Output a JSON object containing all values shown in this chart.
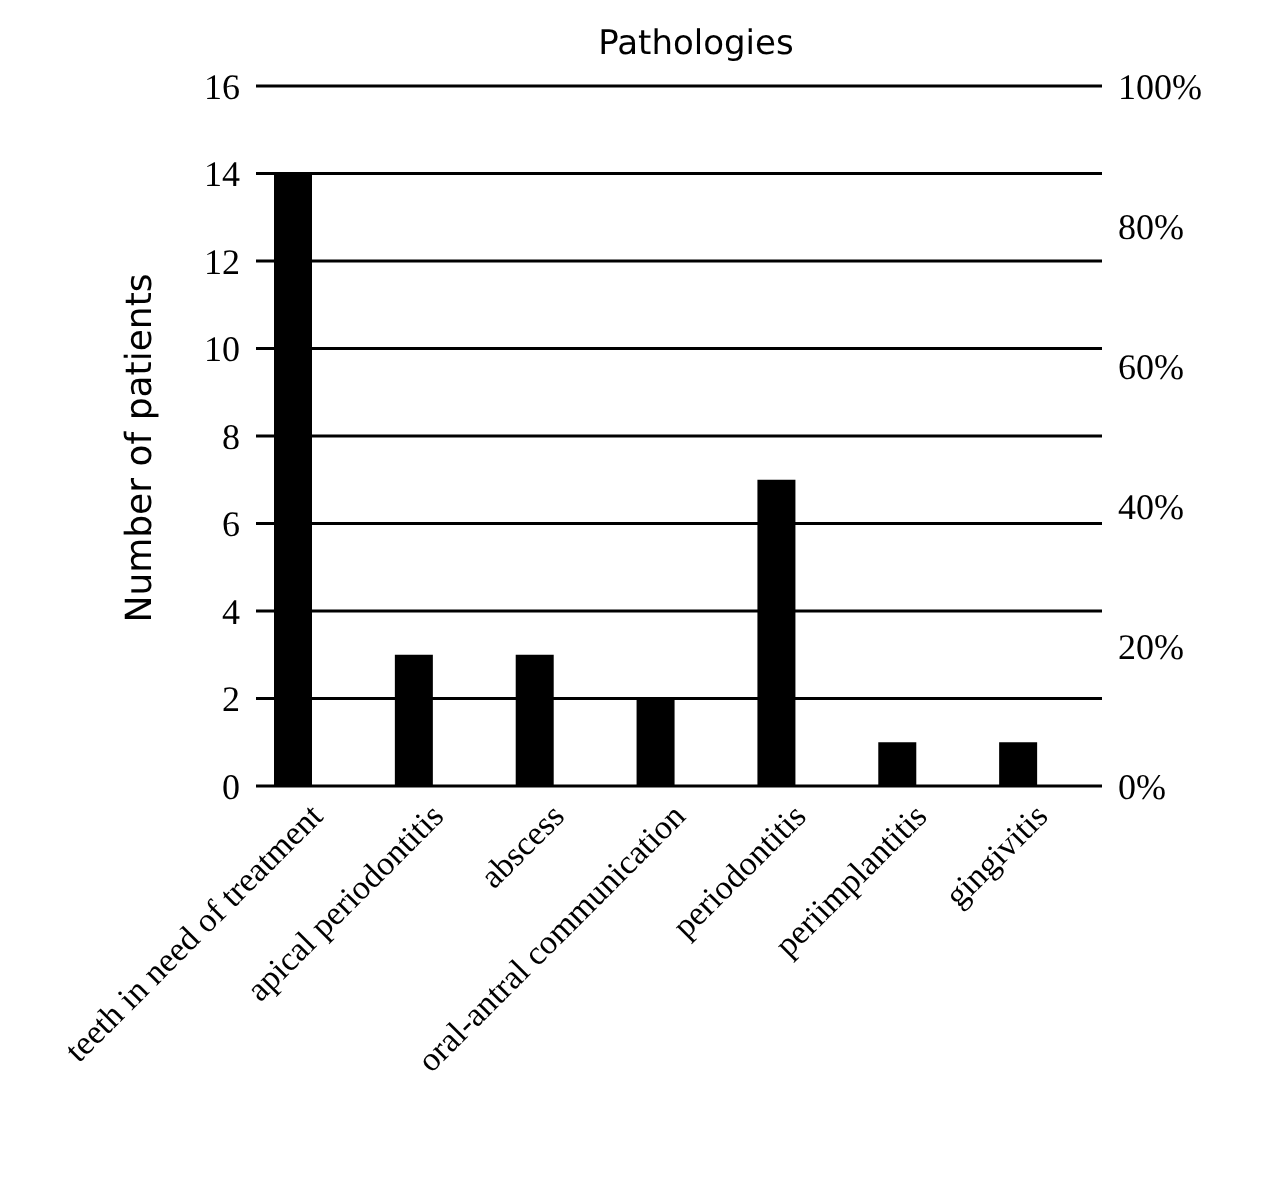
{
  "chart_data": {
    "type": "bar",
    "title": "Pathologies",
    "ylabel": "Number of patients",
    "categories": [
      "teeth in need of treatment",
      "apical periodontitis",
      "abscess",
      "oral-antral communication",
      "periodontitis",
      "periimplantitis",
      "gingivitis"
    ],
    "values": [
      14,
      3,
      3,
      2,
      7,
      1,
      1
    ],
    "color": "#000000",
    "ylim": [
      0,
      16
    ],
    "yticks": [
      0,
      2,
      4,
      6,
      8,
      10,
      12,
      14,
      16
    ],
    "y2lim": [
      0,
      100
    ],
    "y2ticks": [
      {
        "value": 0,
        "label": "0%"
      },
      {
        "value": 20,
        "label": "20%"
      },
      {
        "value": 40,
        "label": "40%"
      },
      {
        "value": 60,
        "label": "60%"
      },
      {
        "value": 80,
        "label": "80%"
      },
      {
        "value": 100,
        "label": "100%"
      }
    ],
    "grid": "y",
    "legend": false
  }
}
